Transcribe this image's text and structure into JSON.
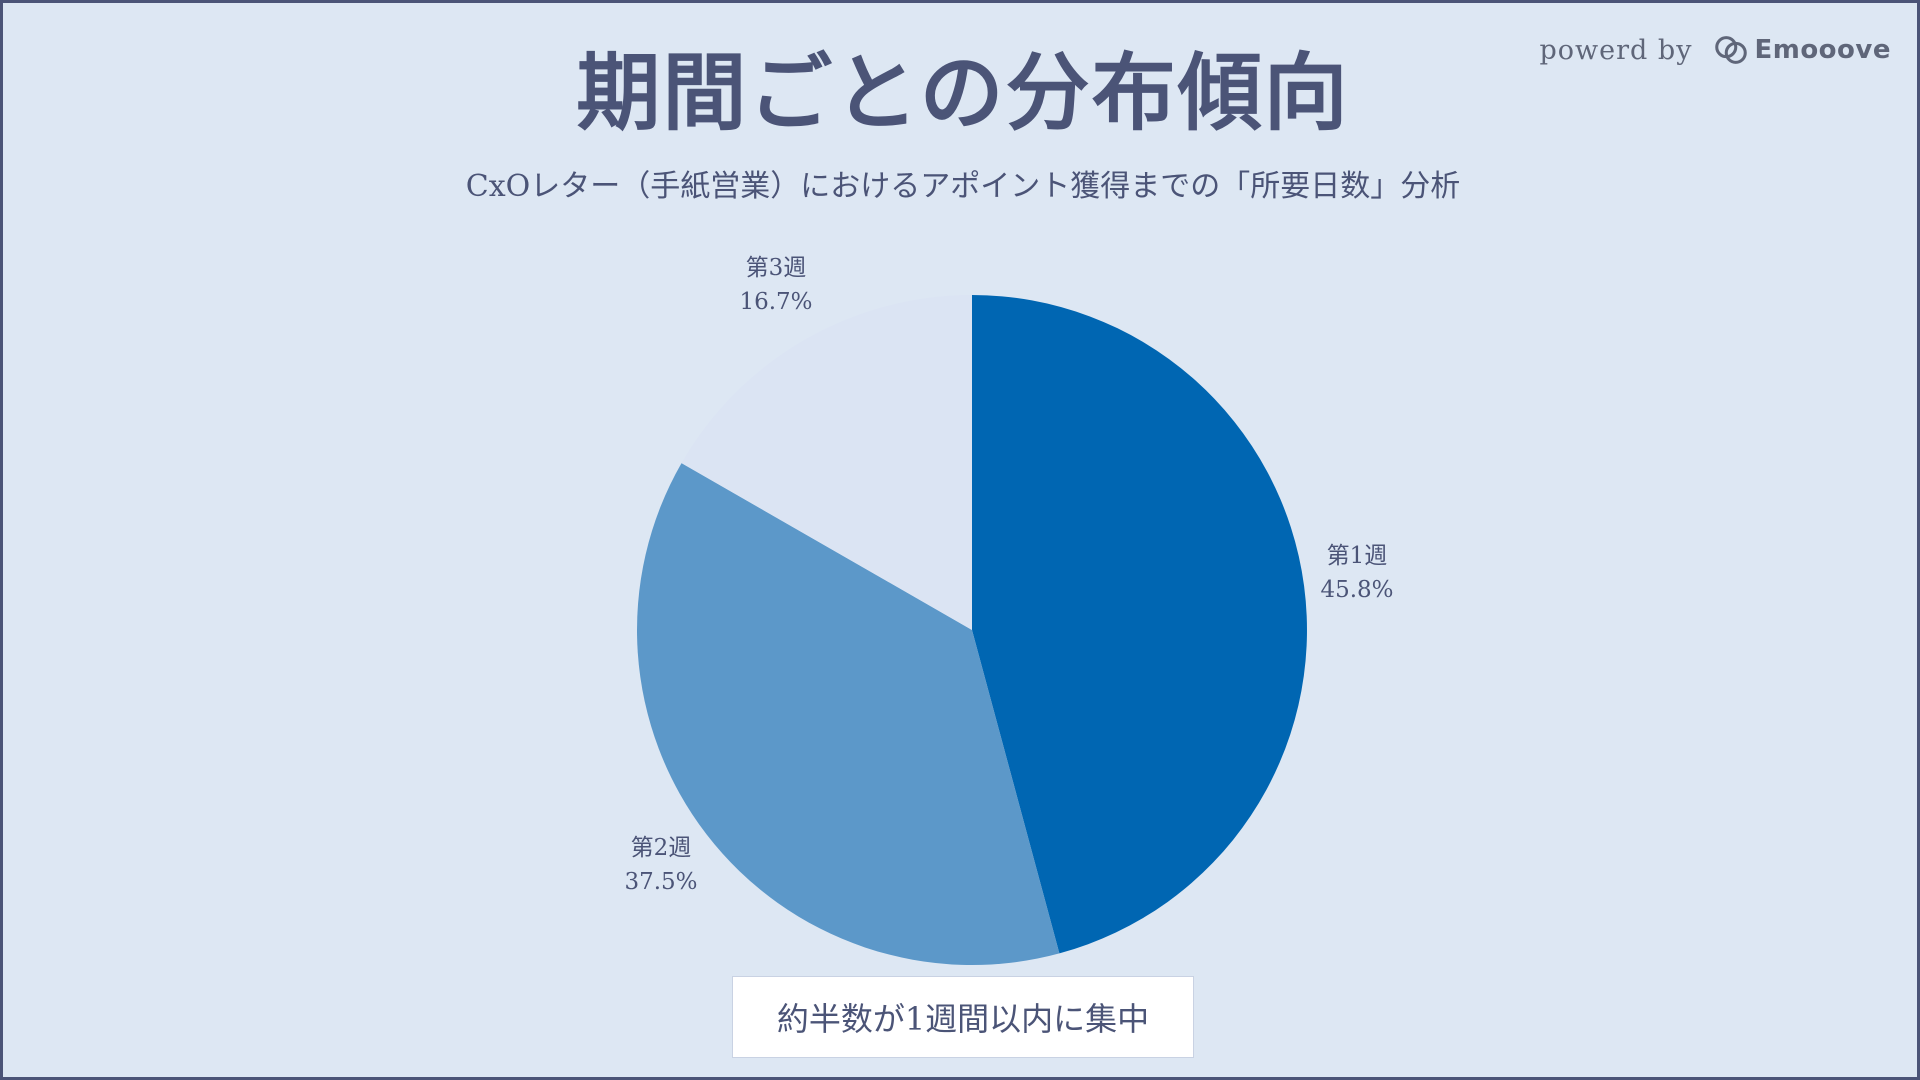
{
  "header": {
    "title": "期間ごとの分布傾向",
    "subtitle": "CxOレター（手紙営業）におけるアポイント獲得までの「所要日数」分析"
  },
  "branding": {
    "powered_text": "powerd by",
    "logo_text": "Emooove",
    "logo_icon": "emooove-logo-icon"
  },
  "chart_data": {
    "type": "pie",
    "slices": [
      {
        "label": "第1週",
        "value": 45.8,
        "display": "45.8%",
        "color": "#0066b2"
      },
      {
        "label": "第2週",
        "value": 37.5,
        "display": "37.5%",
        "color": "#5c98c9"
      },
      {
        "label": "第3週",
        "value": 16.7,
        "display": "16.7%",
        "color": "#dbe4f3"
      }
    ],
    "start": "12 o'clock",
    "direction": "clockwise"
  },
  "callout": {
    "text": "約半数が1週間以内に集中"
  },
  "colors": {
    "background": "#dde7f3",
    "text": "#4b5477",
    "border": "#4b5477"
  }
}
